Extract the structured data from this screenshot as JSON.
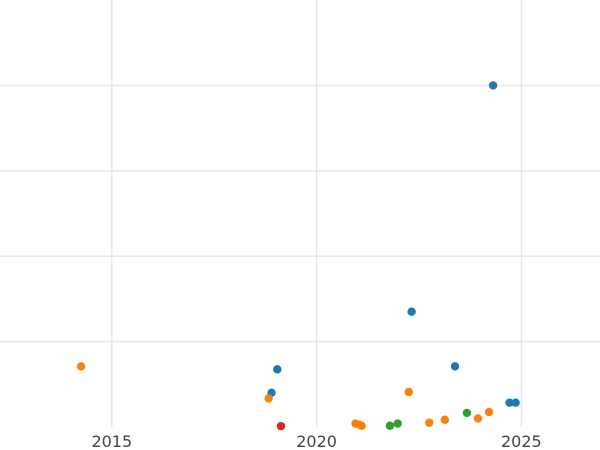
{
  "chart_data": {
    "type": "scatter",
    "title": "",
    "xlabel": "",
    "ylabel": "",
    "x_axis_kind": "year",
    "xlim": [
      2012.27,
      2026.92
    ],
    "ylim": [
      0,
      10
    ],
    "x_ticks": [
      2015,
      2020,
      2025
    ],
    "x_tick_labels": [
      "2015",
      "2020",
      "2025"
    ],
    "y_gridlines": [
      2,
      4,
      6,
      8
    ],
    "y_tick_labels_shown": false,
    "grid": true,
    "legend": "none",
    "series": [
      {
        "color": "#1f77b4",
        "points": [
          {
            "x": 2024.31,
            "y": 8.0
          },
          {
            "x": 2022.32,
            "y": 2.7
          },
          {
            "x": 2019.04,
            "y": 1.35
          },
          {
            "x": 2018.9,
            "y": 0.8
          },
          {
            "x": 2023.38,
            "y": 1.42
          },
          {
            "x": 2024.71,
            "y": 0.57
          },
          {
            "x": 2024.86,
            "y": 0.57
          }
        ]
      },
      {
        "color": "#ff7f0e",
        "points": [
          {
            "x": 2014.25,
            "y": 1.42
          },
          {
            "x": 2018.83,
            "y": 0.67
          },
          {
            "x": 2022.25,
            "y": 0.82
          },
          {
            "x": 2020.95,
            "y": 0.08
          },
          {
            "x": 2021.05,
            "y": 0.05
          },
          {
            "x": 2021.1,
            "y": 0.03
          },
          {
            "x": 2022.75,
            "y": 0.1
          },
          {
            "x": 2023.13,
            "y": 0.17
          },
          {
            "x": 2023.94,
            "y": 0.2
          },
          {
            "x": 2024.21,
            "y": 0.35
          }
        ]
      },
      {
        "color": "#2ca02c",
        "points": [
          {
            "x": 2021.79,
            "y": 0.03
          },
          {
            "x": 2021.98,
            "y": 0.08
          },
          {
            "x": 2023.67,
            "y": 0.33
          }
        ]
      },
      {
        "color": "#d62728",
        "points": [
          {
            "x": 2019.13,
            "y": 0.02
          }
        ]
      }
    ]
  }
}
